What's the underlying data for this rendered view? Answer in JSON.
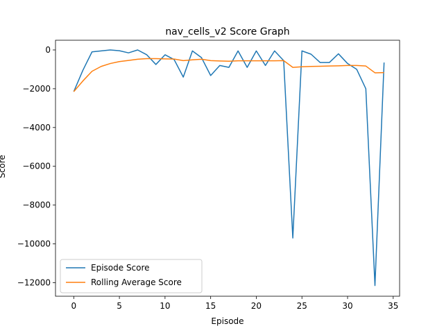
{
  "chart_data": {
    "type": "line",
    "title": "nav_cells_v2 Score Graph",
    "xlabel": "Episode",
    "ylabel": "Score",
    "xlim": [
      -2,
      35.7
    ],
    "ylim": [
      -12700,
      500
    ],
    "x_ticks": [
      0,
      5,
      10,
      15,
      20,
      25,
      30,
      35
    ],
    "y_ticks": [
      0,
      -2000,
      -4000,
      -6000,
      -8000,
      -10000,
      -12000
    ],
    "grid": false,
    "legend": "lower-left",
    "x": [
      0,
      1,
      2,
      3,
      4,
      5,
      6,
      7,
      8,
      9,
      10,
      11,
      12,
      13,
      14,
      15,
      16,
      17,
      18,
      19,
      20,
      21,
      22,
      23,
      24,
      25,
      26,
      27,
      28,
      29,
      30,
      31,
      32,
      33,
      34
    ],
    "series": [
      {
        "name": "Episode Score",
        "color": "#1f77b4",
        "values": [
          -2150,
          -1050,
          -100,
          -50,
          0,
          -40,
          -150,
          0,
          -250,
          -750,
          -250,
          -500,
          -1400,
          -50,
          -400,
          -1320,
          -800,
          -900,
          -50,
          -900,
          -50,
          -800,
          -50,
          -550,
          -9700,
          -50,
          -220,
          -650,
          -650,
          -200,
          -700,
          -1000,
          -2000,
          -12150,
          -650
        ]
      },
      {
        "name": "Rolling Average Score",
        "color": "#ff7f0e",
        "values": [
          -2150,
          -1600,
          -1100,
          -850,
          -700,
          -600,
          -540,
          -480,
          -450,
          -450,
          -460,
          -470,
          -550,
          -510,
          -480,
          -550,
          -570,
          -580,
          -560,
          -560,
          -560,
          -560,
          -560,
          -550,
          -900,
          -870,
          -850,
          -840,
          -830,
          -820,
          -800,
          -800,
          -830,
          -1180,
          -1170
        ]
      }
    ]
  }
}
